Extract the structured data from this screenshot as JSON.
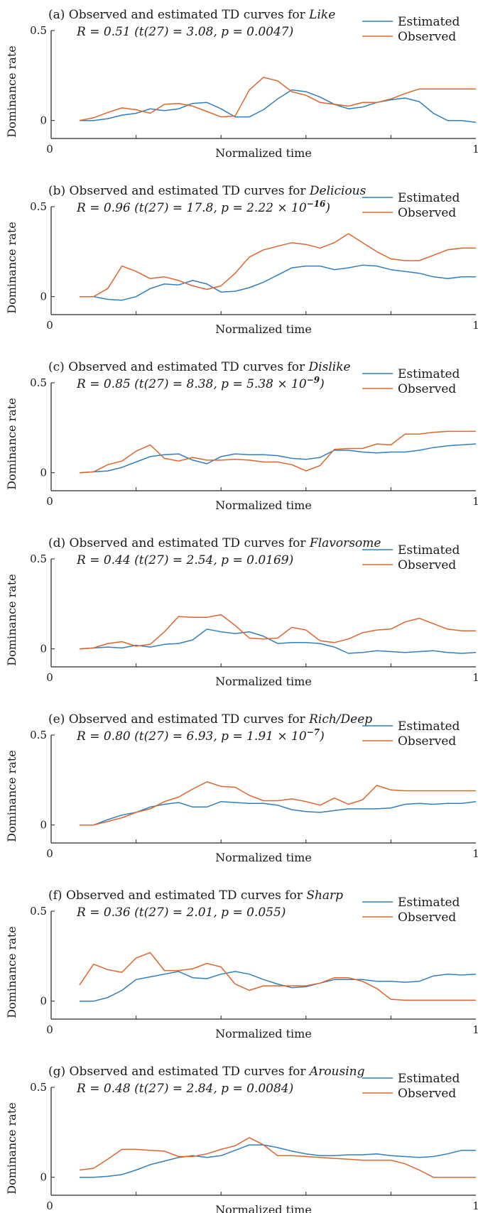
{
  "colors": {
    "estimated": "#2f7fc1",
    "observed": "#e0652b",
    "axis": "#262626"
  },
  "chart_data": [
    {
      "type": "line",
      "title_prefix": "(a) Observed and  estimated TD curves for ",
      "title_attr": "Like",
      "stat": "R = 0.51 (t(27) = 3.08, p = 0.0047)",
      "xlabel": "Normalized time",
      "ylabel": "Dominance rate",
      "xlim": [
        0,
        1
      ],
      "ylim": [
        -0.1,
        0.5
      ],
      "xticks": [
        "0",
        "1"
      ],
      "yticks": [
        "0",
        "0.5"
      ],
      "legend": "top-right",
      "x": [
        0.0667,
        0.1,
        0.1333,
        0.1667,
        0.2,
        0.2333,
        0.2667,
        0.3,
        0.3333,
        0.3667,
        0.4,
        0.4333,
        0.4667,
        0.5,
        0.5333,
        0.5667,
        0.6,
        0.6333,
        0.6667,
        0.7,
        0.7333,
        0.7667,
        0.8,
        0.8333,
        0.8667,
        0.9,
        0.9333,
        0.9667,
        1.0
      ],
      "series": [
        {
          "name": "Estimated",
          "values": [
            0,
            0,
            0.01,
            0.03,
            0.04,
            0.065,
            0.055,
            0.065,
            0.095,
            0.1,
            0.065,
            0.02,
            0.02,
            0.06,
            0.12,
            0.17,
            0.16,
            0.13,
            0.09,
            0.065,
            0.075,
            0.1,
            0.115,
            0.125,
            0.105,
            0.04,
            0.0,
            0.0,
            -0.01
          ]
        },
        {
          "name": "Observed",
          "values": [
            0,
            0.015,
            0.045,
            0.07,
            0.06,
            0.04,
            0.09,
            0.095,
            0.08,
            0.05,
            0.02,
            0.025,
            0.17,
            0.24,
            0.22,
            0.16,
            0.14,
            0.1,
            0.09,
            0.08,
            0.1,
            0.1,
            0.12,
            0.15,
            0.175,
            0.175,
            0.175,
            0.175,
            0.175
          ]
        }
      ]
    },
    {
      "type": "line",
      "title_prefix": "(b) Observed and  estimated TD curves for ",
      "title_attr": "Delicious",
      "stat": "R = 0.96 (t(27) = 17.8, p = 2.22 × 10",
      "stat_exp": "−16",
      "stat_suffix": ")",
      "xlabel": "Normalized time",
      "ylabel": "Dominance rate",
      "xlim": [
        0,
        1
      ],
      "ylim": [
        -0.1,
        0.5
      ],
      "xticks": [
        "0",
        "1"
      ],
      "yticks": [
        "0",
        "0.5"
      ],
      "legend": "top-right",
      "x": [
        0.0667,
        0.1,
        0.1333,
        0.1667,
        0.2,
        0.2333,
        0.2667,
        0.3,
        0.3333,
        0.3667,
        0.4,
        0.4333,
        0.4667,
        0.5,
        0.5333,
        0.5667,
        0.6,
        0.6333,
        0.6667,
        0.7,
        0.7333,
        0.7667,
        0.8,
        0.8333,
        0.8667,
        0.9,
        0.9333,
        0.9667,
        1.0
      ],
      "series": [
        {
          "name": "Estimated",
          "values": [
            0,
            0,
            -0.015,
            -0.02,
            0.0,
            0.045,
            0.07,
            0.065,
            0.09,
            0.07,
            0.025,
            0.03,
            0.05,
            0.08,
            0.12,
            0.16,
            0.17,
            0.17,
            0.15,
            0.16,
            0.175,
            0.17,
            0.15,
            0.14,
            0.13,
            0.11,
            0.1,
            0.11,
            0.11
          ]
        },
        {
          "name": "Observed",
          "values": [
            0,
            0,
            0.045,
            0.17,
            0.14,
            0.1,
            0.11,
            0.09,
            0.06,
            0.04,
            0.06,
            0.13,
            0.22,
            0.26,
            0.28,
            0.3,
            0.29,
            0.27,
            0.3,
            0.35,
            0.3,
            0.25,
            0.21,
            0.2,
            0.2,
            0.23,
            0.26,
            0.27,
            0.27
          ]
        }
      ]
    },
    {
      "type": "line",
      "title_prefix": "(c) Observed and  estimated TD curves for ",
      "title_attr": "Dislike",
      "stat": "R = 0.85 (t(27) = 8.38, p = 5.38 × 10",
      "stat_exp": "−9",
      "stat_suffix": ")",
      "xlabel": "Normalized time",
      "ylabel": "Dominance rate",
      "xlim": [
        0,
        1
      ],
      "ylim": [
        -0.1,
        0.5
      ],
      "xticks": [
        "0",
        "1"
      ],
      "yticks": [
        "0",
        "0.5"
      ],
      "legend": "top-right",
      "x": [
        0.0667,
        0.1,
        0.1333,
        0.1667,
        0.2,
        0.2333,
        0.2667,
        0.3,
        0.3333,
        0.3667,
        0.4,
        0.4333,
        0.4667,
        0.5,
        0.5333,
        0.5667,
        0.6,
        0.6333,
        0.6667,
        0.7,
        0.7333,
        0.7667,
        0.8,
        0.8333,
        0.8667,
        0.9,
        0.9333,
        0.9667,
        1.0
      ],
      "series": [
        {
          "name": "Estimated",
          "values": [
            0,
            0.005,
            0.01,
            0.03,
            0.06,
            0.09,
            0.1,
            0.105,
            0.07,
            0.05,
            0.09,
            0.105,
            0.1,
            0.1,
            0.095,
            0.08,
            0.075,
            0.085,
            0.125,
            0.125,
            0.115,
            0.11,
            0.115,
            0.115,
            0.125,
            0.14,
            0.15,
            0.155,
            0.16
          ]
        },
        {
          "name": "Observed",
          "values": [
            0,
            0.005,
            0.045,
            0.065,
            0.12,
            0.155,
            0.08,
            0.065,
            0.085,
            0.07,
            0.07,
            0.075,
            0.07,
            0.06,
            0.06,
            0.045,
            0.01,
            0.04,
            0.13,
            0.135,
            0.135,
            0.16,
            0.155,
            0.215,
            0.215,
            0.225,
            0.23,
            0.23,
            0.23
          ]
        }
      ]
    },
    {
      "type": "line",
      "title_prefix": "(d) Observed and  estimated TD curves for ",
      "title_attr": "Flavorsome",
      "stat": "R = 0.44 (t(27) = 2.54, p = 0.0169)",
      "xlabel": "Normalized time",
      "ylabel": "Dominance rate",
      "xlim": [
        0,
        1
      ],
      "ylim": [
        -0.1,
        0.5
      ],
      "xticks": [
        "0",
        "1"
      ],
      "yticks": [
        "0",
        "0.5"
      ],
      "legend": "top-right",
      "x": [
        0.0667,
        0.1,
        0.1333,
        0.1667,
        0.2,
        0.2333,
        0.2667,
        0.3,
        0.3333,
        0.3667,
        0.4,
        0.4333,
        0.4667,
        0.5,
        0.5333,
        0.5667,
        0.6,
        0.6333,
        0.6667,
        0.7,
        0.7333,
        0.7667,
        0.8,
        0.8333,
        0.8667,
        0.9,
        0.9333,
        0.9667,
        1.0
      ],
      "series": [
        {
          "name": "Estimated",
          "values": [
            0,
            0.005,
            0.01,
            0.005,
            0.02,
            0.01,
            0.025,
            0.03,
            0.05,
            0.11,
            0.095,
            0.085,
            0.095,
            0.07,
            0.03,
            0.035,
            0.035,
            0.03,
            0.01,
            -0.025,
            -0.02,
            -0.01,
            -0.015,
            -0.02,
            -0.015,
            -0.01,
            -0.02,
            -0.025,
            -0.02
          ]
        },
        {
          "name": "Observed",
          "values": [
            0,
            0.005,
            0.03,
            0.04,
            0.015,
            0.025,
            0.095,
            0.18,
            0.175,
            0.175,
            0.19,
            0.13,
            0.06,
            0.055,
            0.06,
            0.12,
            0.105,
            0.045,
            0.035,
            0.055,
            0.09,
            0.105,
            0.11,
            0.15,
            0.17,
            0.14,
            0.11,
            0.1,
            0.1
          ]
        }
      ]
    },
    {
      "type": "line",
      "title_prefix": "(e) Observed and  estimated TD curves for ",
      "title_attr": "Rich/Deep",
      "stat": "R = 0.80 (t(27) = 6.93, p = 1.91 × 10",
      "stat_exp": "−7",
      "stat_suffix": ")",
      "xlabel": "Normalized time",
      "ylabel": "Dominance rate",
      "xlim": [
        0,
        1
      ],
      "ylim": [
        -0.1,
        0.5
      ],
      "xticks": [
        "0",
        "1"
      ],
      "yticks": [
        "0",
        "0.5"
      ],
      "legend": "top-right",
      "x": [
        0.0667,
        0.1,
        0.1333,
        0.1667,
        0.2,
        0.2333,
        0.2667,
        0.3,
        0.3333,
        0.3667,
        0.4,
        0.4333,
        0.4667,
        0.5,
        0.5333,
        0.5667,
        0.6,
        0.6333,
        0.6667,
        0.7,
        0.7333,
        0.7667,
        0.8,
        0.8333,
        0.8667,
        0.9,
        0.9333,
        0.9667,
        1.0
      ],
      "series": [
        {
          "name": "Estimated",
          "values": [
            0,
            0,
            0.03,
            0.055,
            0.07,
            0.1,
            0.115,
            0.125,
            0.1,
            0.1,
            0.13,
            0.125,
            0.12,
            0.12,
            0.11,
            0.085,
            0.075,
            0.07,
            0.08,
            0.09,
            0.09,
            0.09,
            0.095,
            0.115,
            0.12,
            0.115,
            0.12,
            0.12,
            0.13
          ]
        },
        {
          "name": "Observed",
          "values": [
            0,
            0,
            0.02,
            0.04,
            0.07,
            0.09,
            0.13,
            0.155,
            0.2,
            0.24,
            0.215,
            0.21,
            0.165,
            0.135,
            0.135,
            0.145,
            0.13,
            0.11,
            0.15,
            0.115,
            0.14,
            0.22,
            0.195,
            0.19,
            0.19,
            0.19,
            0.19,
            0.19,
            0.19
          ]
        }
      ]
    },
    {
      "type": "line",
      "title_prefix": "(f) Observed and  estimated TD curves for ",
      "title_attr": "Sharp",
      "stat": "R = 0.36 (t(27) = 2.01, p = 0.055)",
      "xlabel": "Normalized time",
      "ylabel": "Dominance rate",
      "xlim": [
        0,
        1
      ],
      "ylim": [
        -0.1,
        0.5
      ],
      "xticks": [
        "0",
        "1"
      ],
      "yticks": [
        "0",
        "0.5"
      ],
      "legend": "top-right",
      "x": [
        0.0667,
        0.1,
        0.1333,
        0.1667,
        0.2,
        0.2333,
        0.2667,
        0.3,
        0.3333,
        0.3667,
        0.4,
        0.4333,
        0.4667,
        0.5,
        0.5333,
        0.5667,
        0.6,
        0.6333,
        0.6667,
        0.7,
        0.7333,
        0.7667,
        0.8,
        0.8333,
        0.8667,
        0.9,
        0.9333,
        0.9667,
        1.0
      ],
      "series": [
        {
          "name": "Estimated",
          "values": [
            0,
            0,
            0.02,
            0.06,
            0.12,
            0.135,
            0.15,
            0.165,
            0.13,
            0.125,
            0.15,
            0.165,
            0.15,
            0.12,
            0.095,
            0.075,
            0.08,
            0.1,
            0.12,
            0.12,
            0.12,
            0.11,
            0.11,
            0.105,
            0.11,
            0.14,
            0.15,
            0.145,
            0.15
          ]
        },
        {
          "name": "Observed",
          "values": [
            0.09,
            0.205,
            0.175,
            0.16,
            0.24,
            0.27,
            0.17,
            0.17,
            0.18,
            0.21,
            0.19,
            0.095,
            0.06,
            0.085,
            0.085,
            0.085,
            0.085,
            0.1,
            0.13,
            0.13,
            0.11,
            0.07,
            0.01,
            0.005,
            0.005,
            0.005,
            0.005,
            0.005,
            0.005
          ]
        }
      ]
    },
    {
      "type": "line",
      "title_prefix": "(g) Observed and  estimated TD curves for ",
      "title_attr": "Arousing",
      "stat": "R = 0.48 (t(27) = 2.84, p = 0.0084)",
      "xlabel": "Normalized time",
      "ylabel": "Dominance rate",
      "xlim": [
        0,
        1
      ],
      "ylim": [
        -0.1,
        0.5
      ],
      "xticks": [
        "0",
        "1"
      ],
      "yticks": [
        "0",
        "0.5"
      ],
      "legend": "top-right",
      "x": [
        0.0667,
        0.1,
        0.1333,
        0.1667,
        0.2,
        0.2333,
        0.2667,
        0.3,
        0.3333,
        0.3667,
        0.4,
        0.4333,
        0.4667,
        0.5,
        0.5333,
        0.5667,
        0.6,
        0.6333,
        0.6667,
        0.7,
        0.7333,
        0.7667,
        0.8,
        0.8333,
        0.8667,
        0.9,
        0.9333,
        0.9667,
        1.0
      ],
      "series": [
        {
          "name": "Estimated",
          "values": [
            0,
            0,
            0.005,
            0.015,
            0.04,
            0.07,
            0.09,
            0.11,
            0.12,
            0.11,
            0.12,
            0.15,
            0.18,
            0.18,
            0.165,
            0.145,
            0.13,
            0.12,
            0.12,
            0.125,
            0.125,
            0.13,
            0.12,
            0.115,
            0.11,
            0.115,
            0.13,
            0.15,
            0.15
          ]
        },
        {
          "name": "Observed",
          "values": [
            0.04,
            0.05,
            0.1,
            0.155,
            0.155,
            0.15,
            0.145,
            0.115,
            0.115,
            0.13,
            0.155,
            0.175,
            0.22,
            0.18,
            0.12,
            0.12,
            0.115,
            0.11,
            0.105,
            0.1,
            0.095,
            0.095,
            0.095,
            0.075,
            0.04,
            0.0,
            0.0,
            0.0,
            0.0
          ]
        }
      ]
    }
  ]
}
